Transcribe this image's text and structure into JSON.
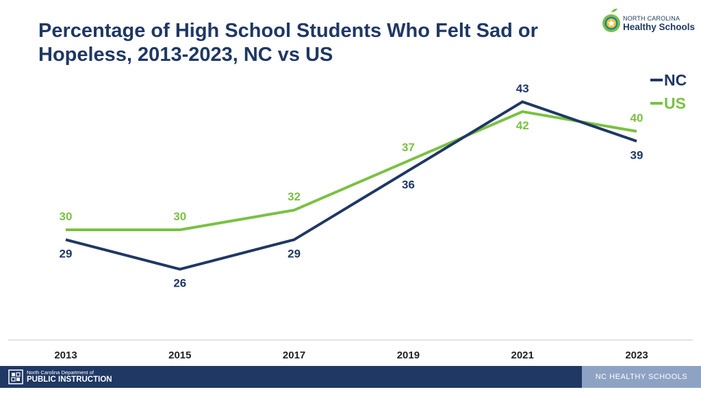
{
  "header": {
    "title_line1": "Percentage of High School Students Who Felt Sad or",
    "title_line2": "Hopeless, 2013-2023, NC vs US"
  },
  "logo": {
    "line1": "NORTH CAROLINA",
    "line2": "Healthy Schools"
  },
  "footer": {
    "dpi_line1": "North Carolina Department of",
    "dpi_line2": "PUBLIC INSTRUCTION",
    "right_label": "NC HEALTHY SCHOOLS"
  },
  "colors": {
    "nc": "#1f3864",
    "us": "#7ac143",
    "title": "#1f3864",
    "axis": "#d9d9d9"
  },
  "chart_data": {
    "type": "line",
    "title": "Percentage of High School Students Who Felt Sad or Hopeless, 2013-2023, NC vs US",
    "categories": [
      "2013",
      "2015",
      "2017",
      "2019",
      "2021",
      "2023"
    ],
    "series": [
      {
        "name": "NC",
        "values": [
          29,
          26,
          29,
          36,
          43,
          39
        ]
      },
      {
        "name": "US",
        "values": [
          30,
          30,
          32,
          37,
          42,
          40
        ]
      }
    ],
    "xlabel": "",
    "ylabel": "",
    "ylim": [
      20,
      45
    ],
    "grid": false,
    "legend": "top-right",
    "data_labels": true
  }
}
